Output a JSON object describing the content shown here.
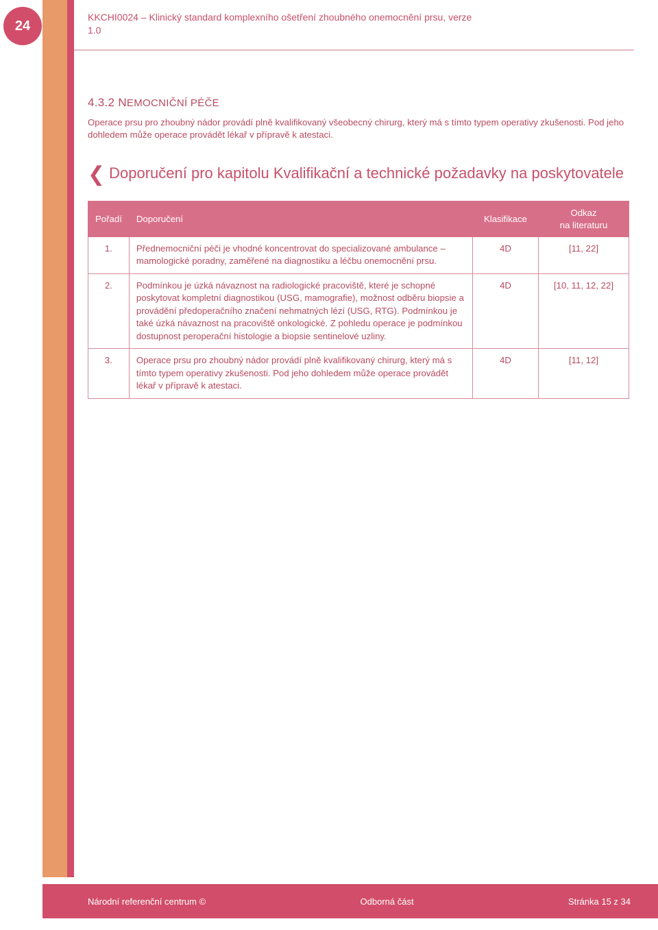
{
  "colors": {
    "accent": "#d24d6a",
    "accent_light": "#d86f88",
    "text_wine": "#b84a5f",
    "stripe_orange": "#e89a68",
    "border": "#d88a9d",
    "header_line": "#e7b8c3"
  },
  "page_number": "24",
  "header": {
    "line1": "KKCHI0024 – Klinický standard komplexního ošetření zhoubného onemocnění prsu, verze",
    "line2": "1.0"
  },
  "section": {
    "number_title": "4.3.2 NEMOCNIČNÍ PÉČE",
    "paragraph": "Operace prsu pro zhoubný nádor provádí plně kvalifikovaný všeobecný chirurg, který má s tímto typem operativy zkušenosti. Pod jeho dohledem může operace provádět lékař v přípravě k atestaci."
  },
  "rec_heading": "Doporučení pro kapitolu Kvalifikační a technické požadavky na poskytovatele",
  "table": {
    "columns": {
      "poradi": "Pořadí",
      "doporuceni": "Doporučení",
      "klasifikace": "Klasifikace",
      "odkaz_line1": "Odkaz",
      "odkaz_line2": "na literaturu"
    },
    "rows": [
      {
        "n": "1.",
        "text": "Přednemocniční péči je vhodné koncentrovat do specializované ambulance – mamologické poradny, zaměřené na diagnostiku a léčbu onemocnění prsu.",
        "klas": "4D",
        "odk": "[11, 22]"
      },
      {
        "n": "2.",
        "text": "Podmínkou je úzká návaznost na radiologické pracoviště, které je schopné poskytovat kompletní diagnostikou (USG, mamografie), možnost odběru biopsie a provádění předoperačního značení nehmatných lézí (USG, RTG). Podmínkou je také úzká návaznost na pracoviště onkologické. Z pohledu operace je podmínkou dostupnost peroperační histologie a biopsie sentinelové uzliny.",
        "klas": "4D",
        "odk": "[10, 11, 12, 22]"
      },
      {
        "n": "3.",
        "text": "Operace prsu pro zhoubný nádor provádí plně kvalifikovaný chirurg, který má s tímto typem operativy zkušenosti. Pod jeho dohledem může operace provádět lékař v přípravě k atestaci.",
        "klas": "4D",
        "odk": "[11, 12]"
      }
    ]
  },
  "footer": {
    "left": "Národní referenční centrum ©",
    "center": "Odborná část",
    "right": "Stránka 15 z 34"
  }
}
